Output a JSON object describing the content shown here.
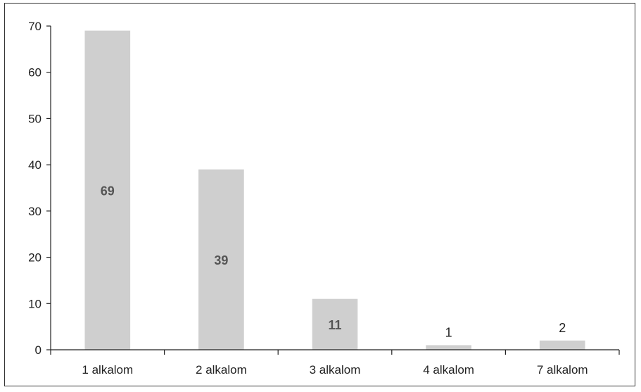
{
  "chart_data": {
    "type": "bar",
    "title": "",
    "xlabel": "",
    "ylabel": "",
    "categories": [
      "1 alkalom",
      "2 alkalom",
      "3 alkalom",
      "4 alkalom",
      "7 alkalom"
    ],
    "values": [
      69,
      39,
      11,
      1,
      2
    ],
    "data_labels": [
      "69",
      "39",
      "11",
      "1",
      "2"
    ],
    "ylim": [
      0,
      70
    ],
    "yticks": [
      "0",
      "10",
      "20",
      "30",
      "40",
      "50",
      "60",
      "70"
    ],
    "grid": false,
    "legend": "none",
    "colors": {
      "bar": "#cfcfcf",
      "label_inside": "#555555",
      "label_outside": "#222222",
      "axis": "#222222"
    }
  }
}
